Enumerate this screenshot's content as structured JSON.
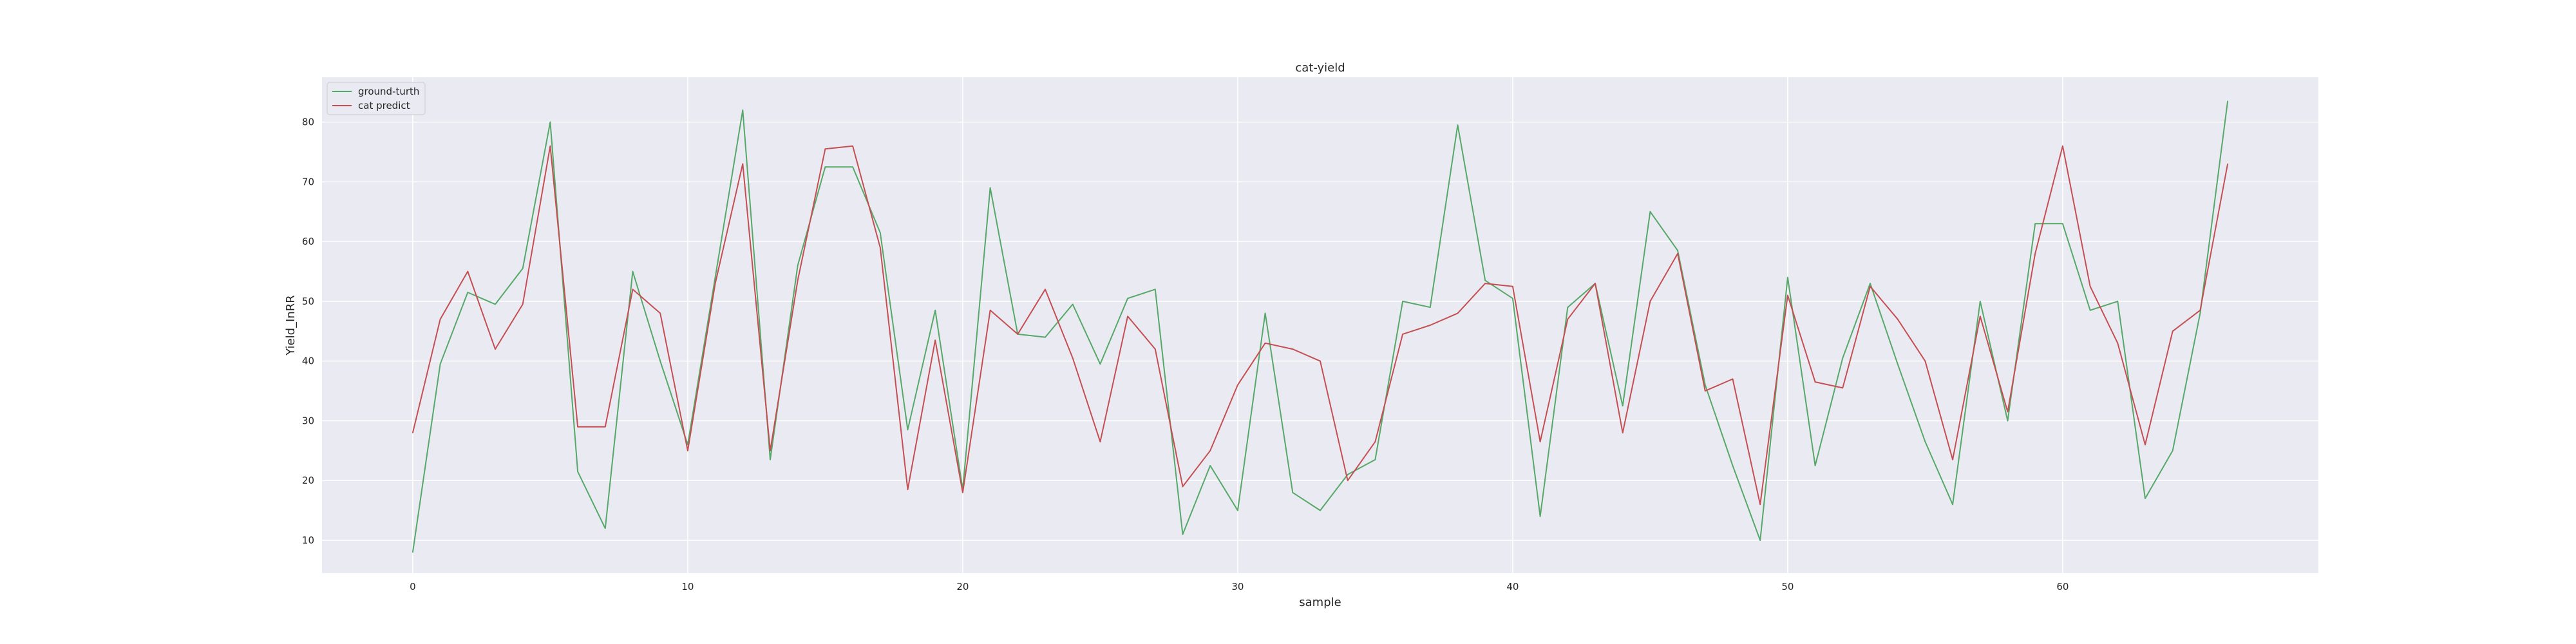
{
  "chart_data": {
    "type": "line",
    "title": "cat-yield",
    "xlabel": "sample",
    "ylabel": "Yield_InRR",
    "xlim": [
      -3.3,
      69.3
    ],
    "ylim": [
      4.5,
      87.5
    ],
    "xticks": [
      0,
      10,
      20,
      30,
      40,
      50,
      60
    ],
    "yticks": [
      10,
      20,
      30,
      40,
      50,
      60,
      70,
      80
    ],
    "grid": true,
    "legend_position": "top-left",
    "background_color": "#eaeaf2",
    "grid_color": "#ffffff",
    "x": [
      0,
      1,
      2,
      3,
      4,
      5,
      6,
      7,
      8,
      9,
      10,
      11,
      12,
      13,
      14,
      15,
      16,
      17,
      18,
      19,
      20,
      21,
      22,
      23,
      24,
      25,
      26,
      27,
      28,
      29,
      30,
      31,
      32,
      33,
      34,
      35,
      36,
      37,
      38,
      39,
      40,
      41,
      42,
      43,
      44,
      45,
      46,
      47,
      48,
      49,
      50,
      51,
      52,
      53,
      54,
      55,
      56,
      57,
      58,
      59,
      60,
      61,
      62,
      63,
      64,
      65,
      66
    ],
    "series": [
      {
        "name": "ground-turth",
        "color": "#55a868",
        "values": [
          8,
          39.5,
          51.5,
          49.5,
          55.5,
          80,
          21.5,
          12,
          55,
          40,
          26,
          54,
          82,
          23.5,
          56,
          72.5,
          72.5,
          61.5,
          28.5,
          48.5,
          18.5,
          69,
          44.5,
          44,
          49.5,
          39.5,
          50.5,
          52,
          11,
          22.5,
          15,
          48,
          18,
          15,
          21,
          23.5,
          50,
          49,
          79.5,
          53.5,
          50.5,
          14,
          49,
          53,
          32.5,
          65,
          58.5,
          36,
          22.5,
          10,
          54,
          22.5,
          40.5,
          53,
          39.5,
          26.5,
          16,
          50,
          30,
          63,
          63,
          48.5,
          50,
          17,
          25,
          48,
          83.5
        ]
      },
      {
        "name": "cat predict",
        "color": "#c44e52",
        "values": [
          28,
          47,
          55,
          42,
          49.5,
          76,
          29,
          29,
          52,
          48,
          25,
          53,
          73,
          25,
          53.5,
          75.5,
          76,
          59,
          18.5,
          43.5,
          18,
          48.5,
          44.5,
          52,
          40.5,
          26.5,
          47.5,
          42,
          19,
          25,
          36,
          43,
          42,
          40,
          20,
          26.5,
          44.5,
          46,
          48,
          53,
          52.5,
          26.5,
          47,
          53,
          28,
          50,
          58,
          35,
          37,
          16,
          51,
          36.5,
          35.5,
          52.5,
          47,
          40,
          23.5,
          47.5,
          31.5,
          58,
          76,
          52.5,
          43,
          26,
          45,
          48.5,
          73
        ]
      }
    ]
  }
}
